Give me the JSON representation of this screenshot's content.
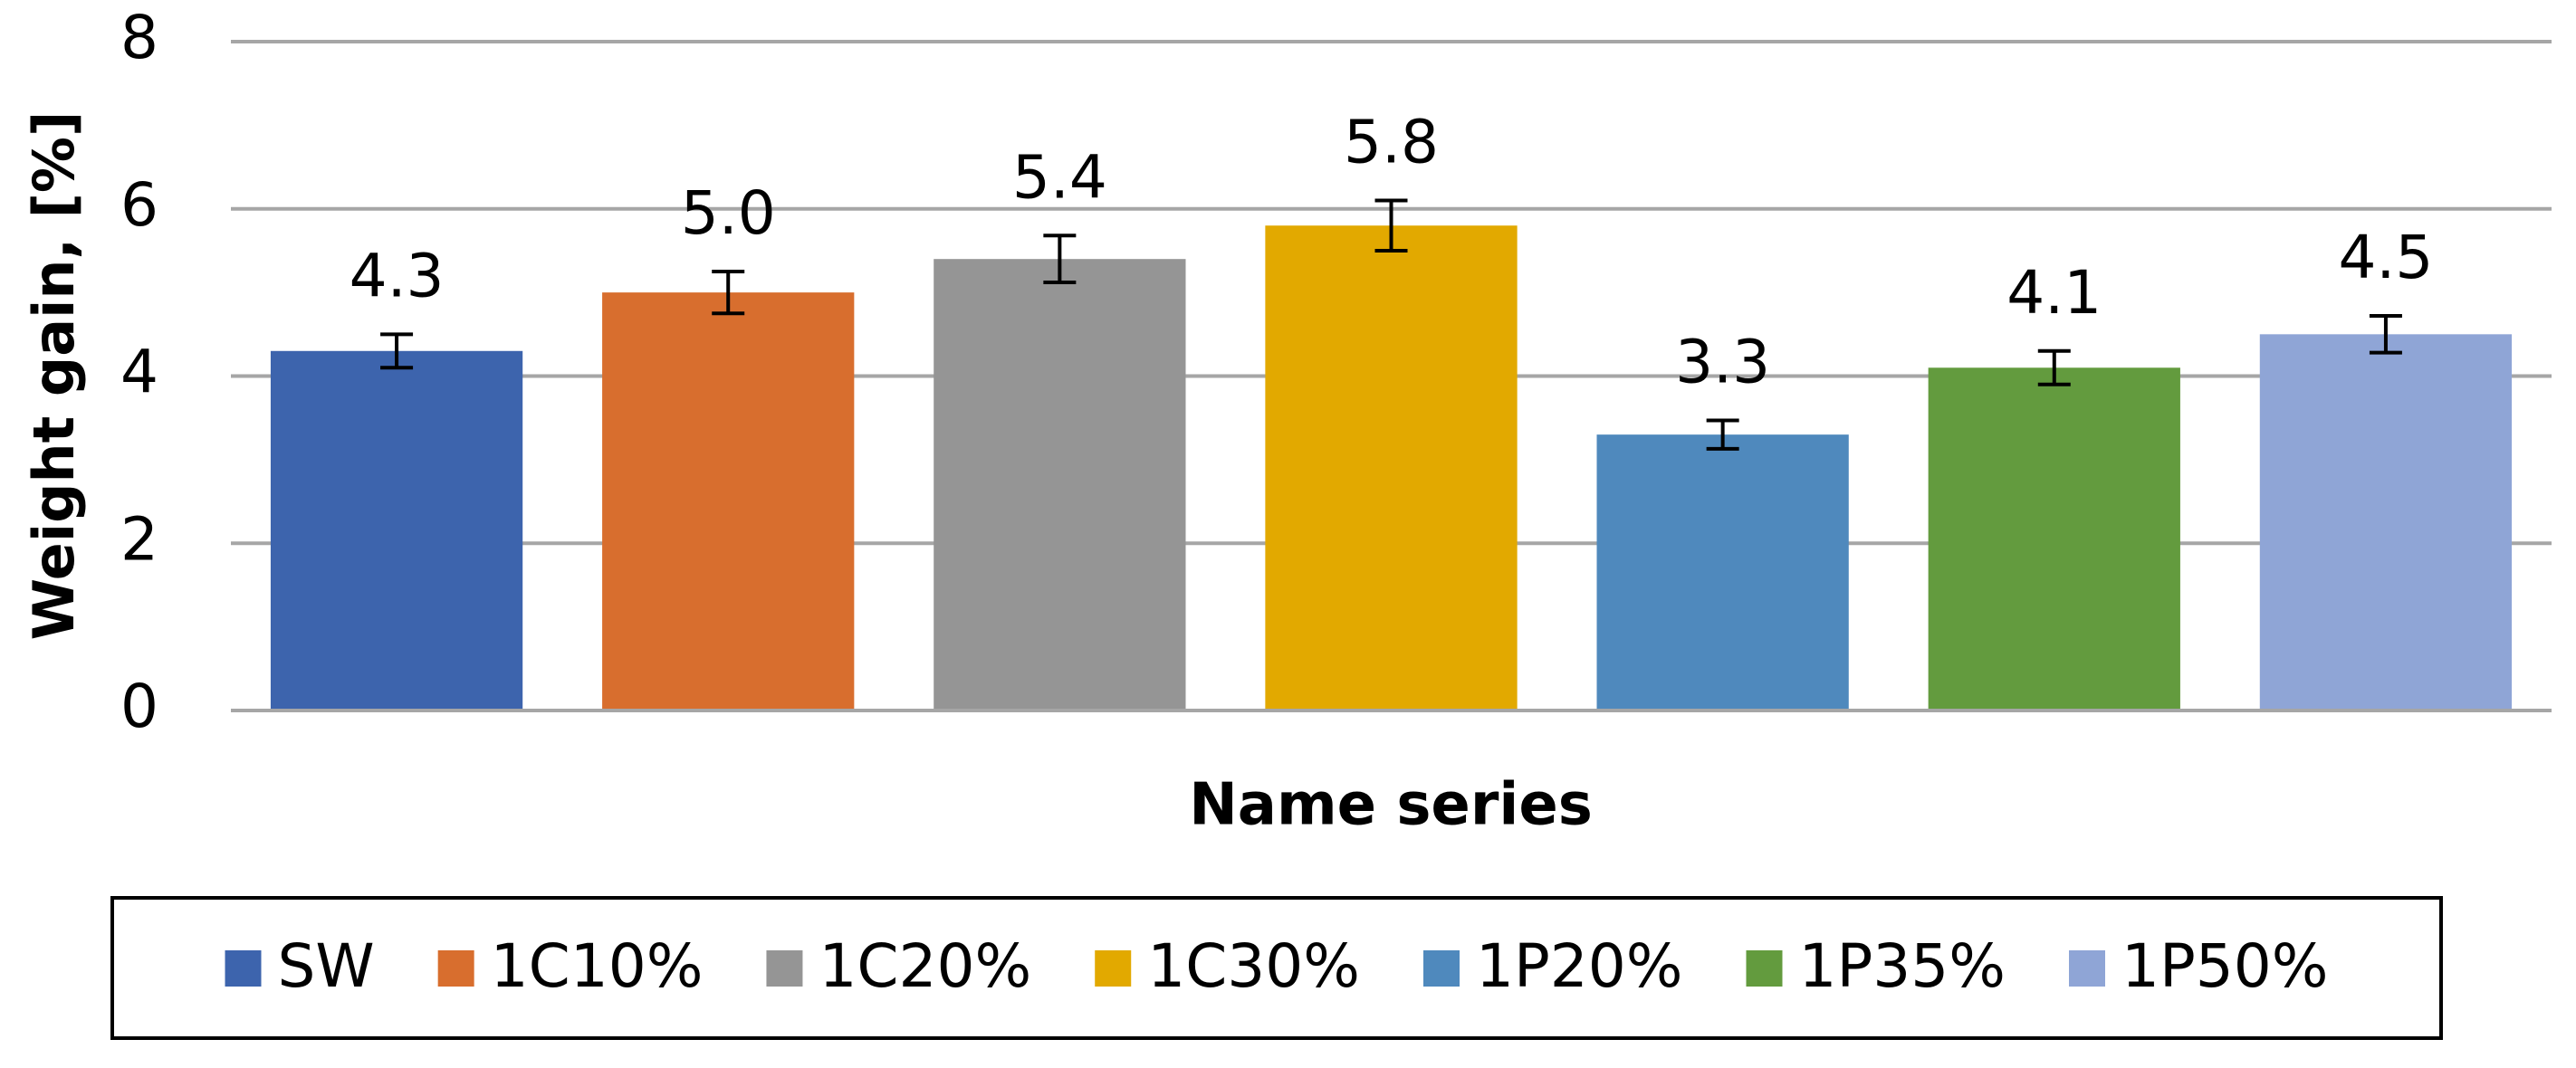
{
  "chart_data": {
    "type": "bar",
    "y_label": "Weight gain, [%]",
    "x_label": "Name series",
    "ylim": [
      0,
      8
    ],
    "yticks": [
      0,
      2,
      4,
      6,
      8
    ],
    "grid": true,
    "legend": "bottom",
    "series": [
      {
        "name": "SW",
        "color": "#3d64ad",
        "values": [
          4.3
        ],
        "errors": [
          0.2
        ],
        "value_labels": [
          "4.3"
        ]
      },
      {
        "name": "1C10%",
        "color": "#d86e2e",
        "values": [
          5.0
        ],
        "errors": [
          0.25
        ],
        "value_labels": [
          "5.0"
        ]
      },
      {
        "name": "1C20%",
        "color": "#959595",
        "values": [
          5.4
        ],
        "errors": [
          0.28
        ],
        "value_labels": [
          "5.4"
        ]
      },
      {
        "name": "1C30%",
        "color": "#e2a900",
        "values": [
          5.8
        ],
        "errors": [
          0.3
        ],
        "value_labels": [
          "5.8"
        ]
      },
      {
        "name": "1P20%",
        "color": "#4f89bd",
        "values": [
          3.3
        ],
        "errors": [
          0.17
        ],
        "value_labels": [
          "3.3"
        ]
      },
      {
        "name": "1P35%",
        "color": "#639b3e",
        "values": [
          4.1
        ],
        "errors": [
          0.2
        ],
        "value_labels": [
          "4.1"
        ]
      },
      {
        "name": "1P50%",
        "color": "#8fa5d6",
        "values": [
          4.5
        ],
        "errors": [
          0.22
        ],
        "value_labels": [
          "4.5"
        ]
      }
    ]
  }
}
